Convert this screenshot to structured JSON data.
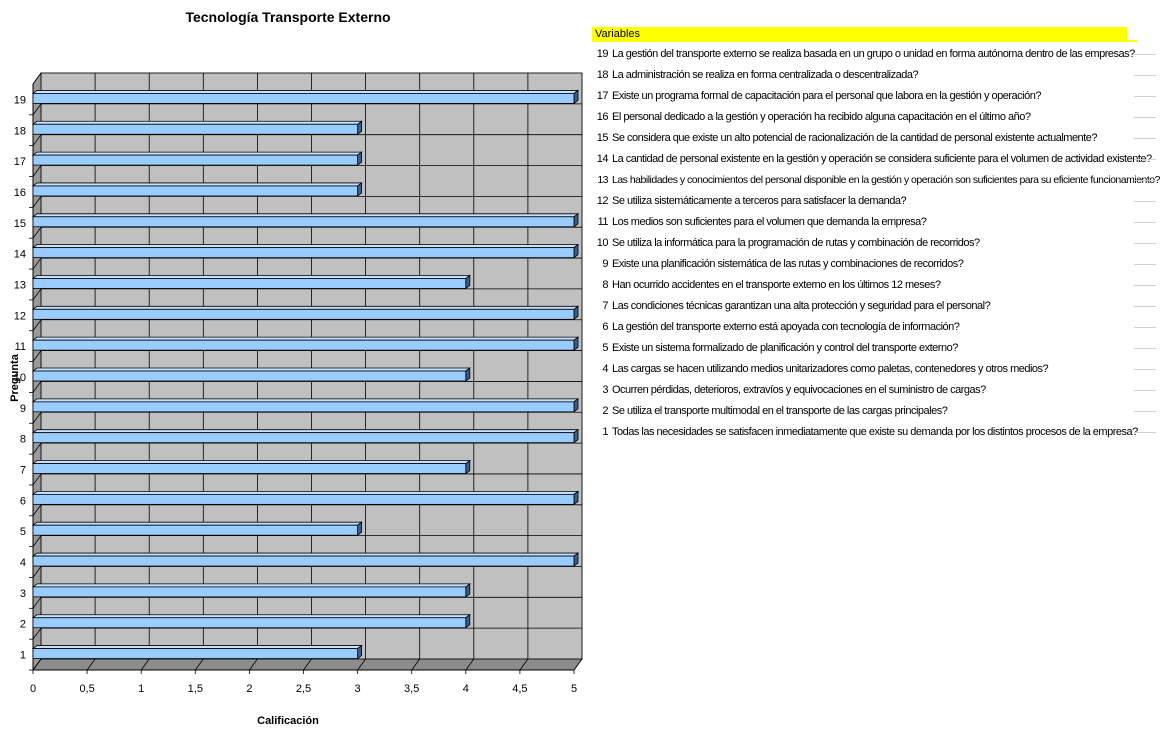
{
  "chart_data": {
    "type": "bar",
    "orientation": "horizontal",
    "title": "Tecnología Transporte Externo",
    "xlabel": "Calificación",
    "ylabel": "Pregunta",
    "xlim": [
      0,
      5
    ],
    "x_ticks": [
      "0",
      "0,5",
      "1",
      "1,5",
      "2",
      "2,5",
      "3",
      "3,5",
      "4",
      "4,5",
      "5"
    ],
    "categories": [
      "1",
      "2",
      "3",
      "4",
      "5",
      "6",
      "7",
      "8",
      "9",
      "10",
      "11",
      "12",
      "13",
      "14",
      "15",
      "16",
      "17",
      "18",
      "19"
    ],
    "values": [
      3,
      4,
      4,
      5,
      3,
      5,
      4,
      5,
      5,
      4,
      5,
      5,
      4,
      5,
      5,
      3,
      3,
      3,
      5
    ],
    "grid": true,
    "bar_color": "#99ccff",
    "plot_bg": "#c0c0c0"
  },
  "legend": {
    "header": "Variables",
    "header_color": "#ffff00",
    "items": [
      {
        "num": "19",
        "text": "La gestión del transporte externo se realiza basada en un grupo o unidad en forma autónoma dentro de las empresas?"
      },
      {
        "num": "18",
        "text": "La administración se realiza en forma centralizada o descentralizada?"
      },
      {
        "num": "17",
        "text": "Existe un programa formal de capacitación para el personal que labora en la gestión y operación?"
      },
      {
        "num": "16",
        "text": "El personal dedicado a la gestión y operación ha recibido alguna capacitación en el último año?"
      },
      {
        "num": "15",
        "text": "Se considera que existe un alto potencial de racionalización de la cantidad de personal existente actualmente?"
      },
      {
        "num": "14",
        "text": "La cantidad de personal existente en la gestión y operación se considera suficiente para el volumen de actividad existente?"
      },
      {
        "num": "13",
        "text": "Las habilidades y conocimientos del personal disponible en la gestión y operación son suficientes para su eficiente funcionamiento?"
      },
      {
        "num": "12",
        "text": "Se utiliza sistemáticamente a terceros para satisfacer la demanda?"
      },
      {
        "num": "11",
        "text": "Los medios son suficientes para el volumen que demanda la empresa?"
      },
      {
        "num": "10",
        "text": "Se utiliza la informática para la programación de rutas y combinación de recorridos?"
      },
      {
        "num": "9",
        "text": "Existe una planificación sistemática de las rutas y combinaciones de recorridos?"
      },
      {
        "num": "8",
        "text": "Han ocurrido accidentes en el transporte externo en los últimos 12 meses?"
      },
      {
        "num": "7",
        "text": "Las condiciones técnicas garantizan una alta protección y seguridad para el personal?"
      },
      {
        "num": "6",
        "text": "La gestión del transporte externo está apoyada con tecnología de información?"
      },
      {
        "num": "5",
        "text": "Existe un sistema formalizado de planificación y control del transporte externo?"
      },
      {
        "num": "4",
        "text": "Las cargas se hacen utilizando medios unitarizadores como paletas, contenedores y otros medios?"
      },
      {
        "num": "3",
        "text": "Ocurren pérdidas, deterioros, extravíos y equivocaciones en el suministro de cargas?"
      },
      {
        "num": "2",
        "text": "Se utiliza el transporte multimodal en el transporte de las cargas principales?"
      },
      {
        "num": "1",
        "text": "Todas las necesidades se satisfacen inmediatamente que existe su demanda por los distintos procesos de la empresa?"
      }
    ]
  }
}
